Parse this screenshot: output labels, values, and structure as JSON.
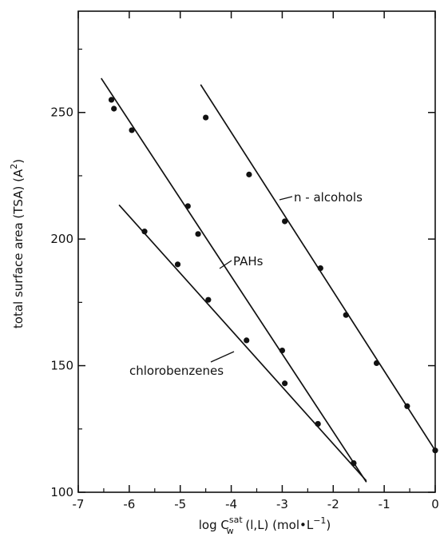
{
  "chart_data": {
    "type": "scatter",
    "xlabel": "log C_w^sat (l,L) (mol•L⁻¹)",
    "ylabel": "total surface area (TSA) (Å²)",
    "xlabel_parts": {
      "main": "log C",
      "sub": "w",
      "sup": "sat",
      "rest": "(l,L) (mol•L",
      "rest_sup": "−1",
      "close": ")"
    },
    "ylabel_parts": {
      "main": "total surface area (TSA) (A",
      "sup": "2",
      "close": ")"
    },
    "xlim": [
      -7,
      0
    ],
    "ylim": [
      100,
      290
    ],
    "xticks": [
      -7,
      -6,
      -5,
      -4,
      -3,
      -2,
      -1,
      0
    ],
    "xtick_labels": [
      "-7",
      "-6",
      "-5",
      "-4",
      "-3",
      "-2",
      "-1",
      "0"
    ],
    "yticks": [
      100,
      150,
      200,
      250
    ],
    "ytick_labels": [
      "100",
      "150",
      "200",
      "250"
    ],
    "grid": false,
    "series": [
      {
        "name": "n - alcohols",
        "points": [
          [
            -4.5,
            248
          ],
          [
            -3.65,
            225.5
          ],
          [
            -2.95,
            207
          ],
          [
            -2.25,
            188.5
          ],
          [
            -1.75,
            170
          ],
          [
            -1.15,
            151
          ],
          [
            -0.55,
            134
          ],
          [
            0,
            116.5
          ]
        ],
        "fit": [
          [
            -4.6,
            261
          ],
          [
            0,
            116.5
          ]
        ]
      },
      {
        "name": "PAHs",
        "points": [
          [
            -6.35,
            255
          ],
          [
            -6.3,
            251.5
          ],
          [
            -5.95,
            243
          ],
          [
            -4.85,
            213
          ],
          [
            -4.65,
            202
          ],
          [
            -3.0,
            156
          ],
          [
            -2.95,
            143
          ],
          [
            -2.3,
            127
          ],
          [
            -1.6,
            111.5
          ]
        ],
        "fit": [
          [
            -6.55,
            263.5
          ],
          [
            -1.35,
            104
          ]
        ]
      },
      {
        "name": "chlorobenzenes",
        "points": [
          [
            -5.7,
            203
          ],
          [
            -5.05,
            190
          ],
          [
            -4.45,
            176
          ],
          [
            -3.7,
            160
          ],
          [
            -2.3,
            127
          ],
          [
            -1.6,
            111.5
          ]
        ],
        "fit": [
          [
            -6.2,
            213.5
          ],
          [
            -1.35,
            104.5
          ]
        ]
      }
    ],
    "annotations": [
      {
        "text": "n - alcohols",
        "series": "n - alcohols"
      },
      {
        "text": "PAHs",
        "series": "PAHs"
      },
      {
        "text": "chlorobenzenes",
        "series": "chlorobenzenes"
      }
    ]
  }
}
